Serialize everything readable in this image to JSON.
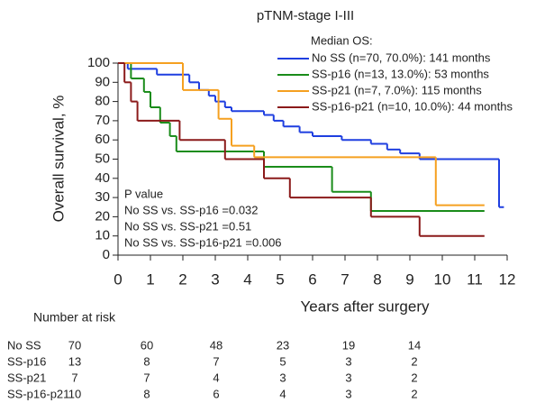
{
  "chart_data": {
    "type": "step",
    "title": "pTNM-stage I-III",
    "x_label": "Years after surgery",
    "y_label": "Overall survival, %",
    "legend_title": "Median OS:",
    "xlim": [
      0,
      12
    ],
    "xticks": [
      0,
      1,
      2,
      3,
      4,
      5,
      6,
      7,
      8,
      9,
      10,
      11,
      12
    ],
    "ylim": [
      0,
      100
    ],
    "yticks": [
      0,
      10,
      20,
      30,
      40,
      50,
      60,
      70,
      80,
      90,
      100
    ],
    "series": [
      {
        "name": "No SS (n=70, 70.0%): 141 months",
        "color": "#1f3fe0",
        "x": [
          0,
          0.3,
          1.2,
          2.2,
          2.5,
          2.8,
          3.0,
          3.3,
          3.5,
          4.5,
          4.8,
          5.1,
          5.6,
          6.0,
          6.9,
          7.8,
          8.3,
          8.7,
          9.3,
          11.75,
          11.9
        ],
        "values": [
          100,
          97,
          94,
          90,
          86,
          83,
          80,
          77,
          75,
          73,
          70,
          67,
          64,
          62,
          60,
          58,
          55,
          53,
          50,
          25,
          25
        ]
      },
      {
        "name": "SS-p16 (n=13, 13.0%): 53 months",
        "color": "#1a8c1a",
        "x": [
          0,
          0.4,
          0.8,
          1.0,
          1.3,
          1.6,
          1.8,
          4.5,
          6.6,
          7.8,
          11.3
        ],
        "values": [
          100,
          92,
          85,
          77,
          69,
          62,
          54,
          46,
          33,
          23,
          23
        ]
      },
      {
        "name": "SS-p21 (n=7, 7.0%): 115 months",
        "color": "#f5a020",
        "x": [
          0,
          2.0,
          3.1,
          3.5,
          4.2,
          9.8,
          11.3
        ],
        "values": [
          100,
          86,
          71,
          57,
          51,
          26,
          26
        ]
      },
      {
        "name": "SS-p16-p21 (n=10, 10.0%): 44 months",
        "color": "#8b1a1a",
        "x": [
          0,
          0.2,
          0.4,
          0.6,
          1.9,
          3.3,
          4.5,
          5.3,
          7.8,
          9.3,
          11.3
        ],
        "values": [
          100,
          90,
          80,
          70,
          60,
          50,
          40,
          30,
          20,
          10,
          10
        ]
      }
    ],
    "annotations": [
      "P value",
      "No SS vs. SS-p16 =0.032",
      "No SS vs. SS-p21 =0.51",
      "No SS vs. SS-p16-p21 =0.006"
    ],
    "risk_table": {
      "title": "Number at risk",
      "rows": [
        {
          "name": "No SS",
          "values": [
            70,
            60,
            48,
            23,
            19,
            14
          ]
        },
        {
          "name": "SS-p16",
          "values": [
            13,
            8,
            7,
            5,
            3,
            2
          ]
        },
        {
          "name": "SS-p21",
          "values": [
            7,
            7,
            4,
            3,
            3,
            2
          ]
        },
        {
          "name": "SS-p16-p21",
          "values": [
            10,
            8,
            6,
            4,
            3,
            2
          ]
        }
      ]
    }
  }
}
